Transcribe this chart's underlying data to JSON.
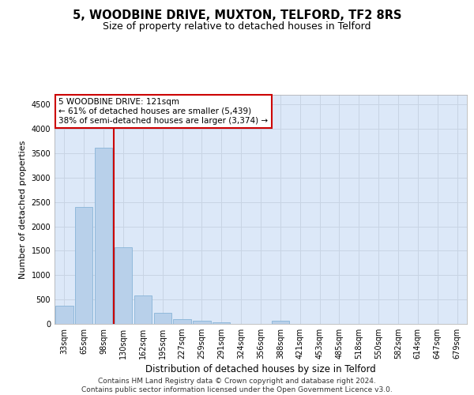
{
  "title": "5, WOODBINE DRIVE, MUXTON, TELFORD, TF2 8RS",
  "subtitle": "Size of property relative to detached houses in Telford",
  "xlabel": "Distribution of detached houses by size in Telford",
  "ylabel": "Number of detached properties",
  "categories": [
    "33sqm",
    "65sqm",
    "98sqm",
    "130sqm",
    "162sqm",
    "195sqm",
    "227sqm",
    "259sqm",
    "291sqm",
    "324sqm",
    "356sqm",
    "388sqm",
    "421sqm",
    "453sqm",
    "485sqm",
    "518sqm",
    "550sqm",
    "582sqm",
    "614sqm",
    "647sqm",
    "679sqm"
  ],
  "values": [
    370,
    2400,
    3620,
    1580,
    590,
    220,
    105,
    60,
    40,
    0,
    0,
    60,
    0,
    0,
    0,
    0,
    0,
    0,
    0,
    0,
    0
  ],
  "bar_color": "#b8d0ea",
  "bar_edge_color": "#88b4d8",
  "vline_xindex": 2.5,
  "vline_color": "#cc0000",
  "ann_line1": "5 WOODBINE DRIVE: 121sqm",
  "ann_line2": "← 61% of detached houses are smaller (5,439)",
  "ann_line3": "38% of semi-detached houses are larger (3,374) →",
  "ann_box_facecolor": "#ffffff",
  "ann_box_edgecolor": "#cc0000",
  "ylim": [
    0,
    4700
  ],
  "yticks": [
    0,
    500,
    1000,
    1500,
    2000,
    2500,
    3000,
    3500,
    4000,
    4500
  ],
  "grid_color": "#c8d4e4",
  "bg_color": "#dce8f8",
  "footer_line1": "Contains HM Land Registry data © Crown copyright and database right 2024.",
  "footer_line2": "Contains public sector information licensed under the Open Government Licence v3.0.",
  "title_fontsize": 10.5,
  "subtitle_fontsize": 9,
  "xlabel_fontsize": 8.5,
  "ylabel_fontsize": 8,
  "tick_fontsize": 7,
  "ann_fontsize": 7.5,
  "footer_fontsize": 6.5
}
